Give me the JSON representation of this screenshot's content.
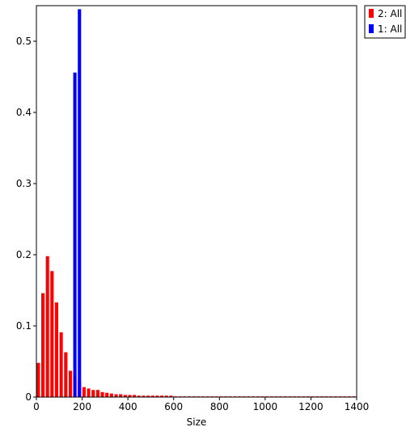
{
  "chart_data": {
    "type": "bar",
    "xlabel": "Size",
    "ylabel": "",
    "xlim": [
      0,
      1400
    ],
    "ylim": [
      0,
      0.55
    ],
    "x_ticks": [
      0,
      200,
      400,
      600,
      800,
      1000,
      1200,
      1400
    ],
    "y_ticks": [
      0,
      0.1,
      0.2,
      0.3,
      0.4,
      0.5
    ],
    "grid": false,
    "legend_position": "top-right-outside",
    "bar_width": 18,
    "series": [
      {
        "name": "2: All",
        "color": "#ff0000",
        "x": [
          10,
          30,
          50,
          70,
          90,
          110,
          130,
          150,
          170,
          190,
          210,
          230,
          250,
          270,
          290,
          310,
          330,
          350,
          370,
          390,
          410,
          430,
          450,
          470,
          490,
          510,
          530,
          550,
          570,
          590,
          610,
          630,
          650,
          670,
          690,
          710,
          730,
          750,
          770,
          790,
          810,
          830,
          850,
          870,
          890,
          910,
          930,
          950,
          970,
          990,
          1010,
          1030,
          1050,
          1070,
          1090,
          1110,
          1130,
          1150,
          1170,
          1190,
          1210,
          1230,
          1250,
          1270,
          1290,
          1310,
          1330,
          1350,
          1370,
          1390
        ],
        "values": [
          0.048,
          0.146,
          0.198,
          0.177,
          0.133,
          0.091,
          0.063,
          0.037,
          0.028,
          0.022,
          0.014,
          0.012,
          0.01,
          0.01,
          0.007,
          0.006,
          0.005,
          0.004,
          0.004,
          0.003,
          0.003,
          0.003,
          0.002,
          0.002,
          0.002,
          0.002,
          0.002,
          0.002,
          0.002,
          0.002,
          0.001,
          0.001,
          0.001,
          0.001,
          0.001,
          0.001,
          0.001,
          0.001,
          0.001,
          0.001,
          0.001,
          0.001,
          0.001,
          0.001,
          0.001,
          0.001,
          0.001,
          0.001,
          0.001,
          0.001,
          0.001,
          0.001,
          0.001,
          0.001,
          0.001,
          0.001,
          0.001,
          0.001,
          0.001,
          0.001,
          0.001,
          0.001,
          0.001,
          0.001,
          0.001,
          0.001,
          0.001,
          0.001,
          0.001,
          0.001
        ]
      },
      {
        "name": "1: All",
        "color": "#0000ff",
        "x": [
          170,
          190
        ],
        "values": [
          0.456,
          0.545
        ]
      }
    ]
  }
}
